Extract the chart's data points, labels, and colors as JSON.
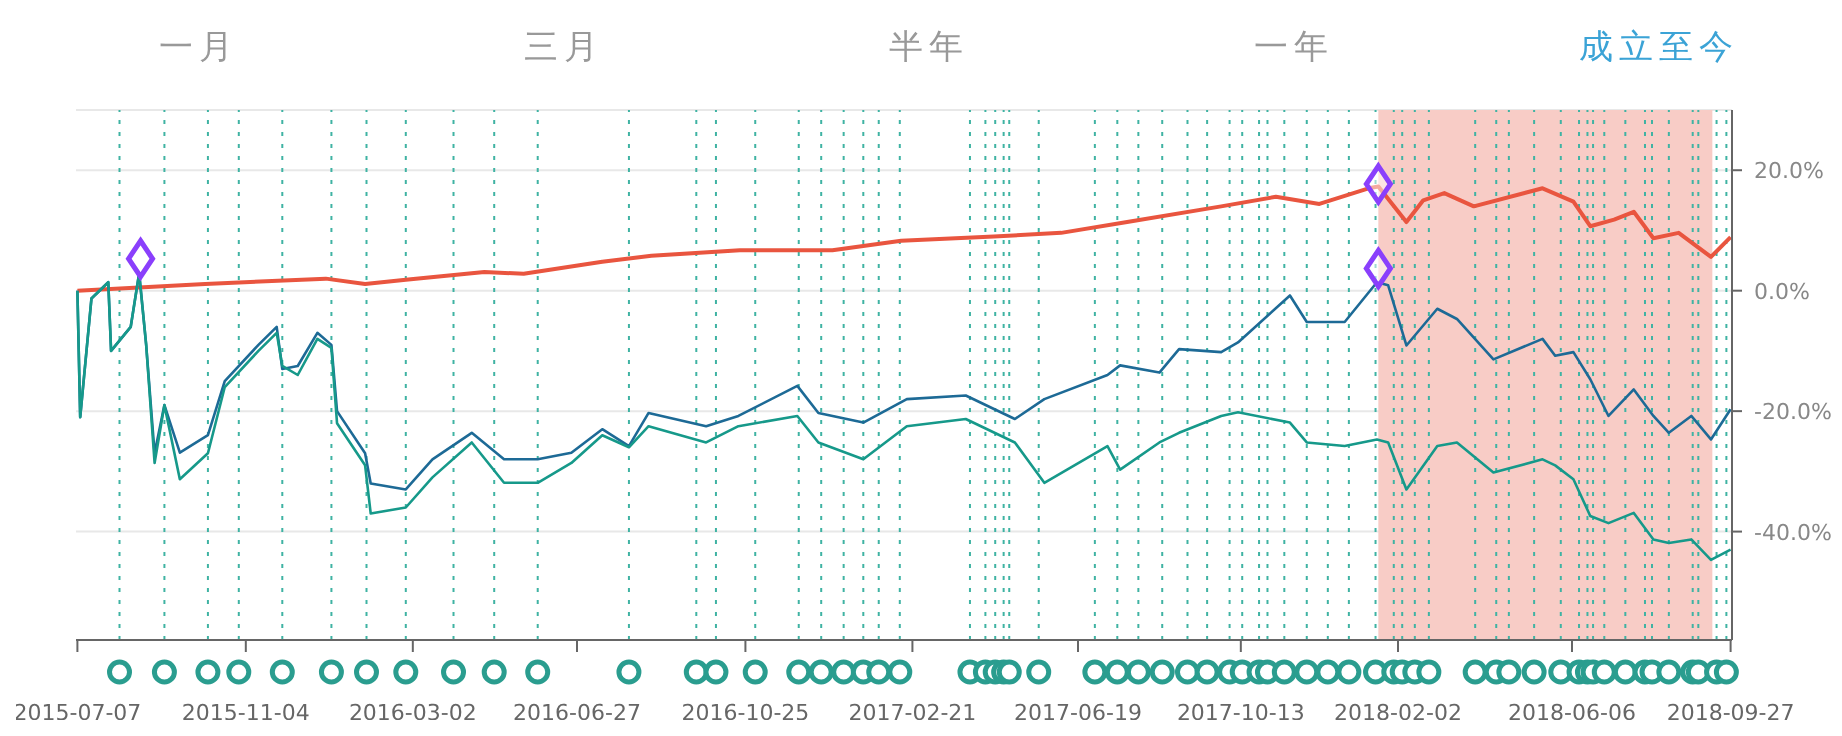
{
  "chart_data": {
    "type": "line",
    "annotations": [
      "一月",
      "三月",
      "半年",
      "一年",
      "成立至今"
    ],
    "x": [
      "2015-07-07",
      "2015-07-09",
      "2015-07-17",
      "2015-07-29",
      "2015-07-31",
      "2015-08-14",
      "2015-08-20",
      "2015-08-25",
      "2015-08-31",
      "2015-09-07",
      "2015-09-18",
      "2015-10-08",
      "2015-10-20",
      "2015-11-13",
      "2015-11-26",
      "2015-11-30",
      "2015-12-11",
      "2015-12-25",
      "2016-01-04",
      "2016-01-08",
      "2016-01-28",
      "2016-02-01",
      "2016-02-26",
      "2016-03-16",
      "2016-04-13",
      "2016-05-06",
      "2016-05-30",
      "2016-06-23",
      "2016-07-15",
      "2016-08-03",
      "2016-08-17",
      "2016-09-27",
      "2016-10-20",
      "2016-12-01",
      "2016-12-16",
      "2017-01-17",
      "2017-02-17",
      "2017-03-31",
      "2017-05-05",
      "2017-05-26",
      "2017-07-10",
      "2017-07-19",
      "2017-08-16",
      "2017-08-30",
      "2017-09-29",
      "2017-10-11",
      "2017-11-17",
      "2017-11-29",
      "2017-12-26",
      "2018-01-18",
      "2018-01-26",
      "2018-02-08",
      "2018-03-02",
      "2018-03-16",
      "2018-04-11",
      "2018-05-16",
      "2018-05-25",
      "2018-06-07",
      "2018-06-19",
      "2018-07-02",
      "2018-07-20",
      "2018-08-03",
      "2018-08-14",
      "2018-08-30",
      "2018-09-13",
      "2018-09-27"
    ],
    "series": [
      {
        "color": "#e9553f",
        "x": [
          "2015-07-07",
          "2015-10-06",
          "2015-12-31",
          "2016-01-28",
          "2016-02-26",
          "2016-04-22",
          "2016-05-20",
          "2016-07-15",
          "2016-08-19",
          "2016-10-21",
          "2016-12-26",
          "2017-02-13",
          "2017-04-20",
          "2017-06-07",
          "2017-07-24",
          "2017-09-29",
          "2017-11-07",
          "2017-12-08",
          "2018-01-12",
          "2018-01-19",
          "2018-02-08",
          "2018-02-20",
          "2018-03-07",
          "2018-03-28",
          "2018-05-16",
          "2018-06-07",
          "2018-06-19",
          "2018-07-06",
          "2018-07-20",
          "2018-08-03",
          "2018-08-21",
          "2018-09-13",
          "2018-09-27"
        ],
        "values": [
          0,
          1.1,
          2,
          1.1,
          1.8,
          3.1,
          2.8,
          4.8,
          5.8,
          6.7,
          6.7,
          8.3,
          9,
          9.6,
          11.4,
          14,
          15.6,
          14.4,
          17,
          17.3,
          11.4,
          15,
          16.2,
          14,
          17,
          14.8,
          10.7,
          11.8,
          13.1,
          8.7,
          9.6,
          5.6,
          8.9
        ]
      },
      {
        "color": "#1d6a96",
        "values": [
          0,
          -21,
          -1.3,
          1.4,
          -10,
          -6,
          2.9,
          -9,
          -27,
          -19,
          -26.9,
          -24,
          -15,
          -9,
          -6,
          -13,
          -12.5,
          -7,
          -9,
          -20,
          -27,
          -32,
          -33,
          -28,
          -23.6,
          -28,
          -28,
          -26.9,
          -23,
          -25.8,
          -20.3,
          -22.5,
          -20.8,
          -15.8,
          -20.3,
          -21.9,
          -18,
          -17.4,
          -21.3,
          -18,
          -14,
          -12.4,
          -13.6,
          -9.7,
          -10.2,
          -8.6,
          -0.8,
          -5.2,
          -5.2,
          1.4,
          0.9,
          -9.1,
          -3,
          -4.7,
          -11.4,
          -8,
          -10.8,
          -10.2,
          -14.7,
          -20.8,
          -16.4,
          -20.8,
          -23.6,
          -20.8,
          -24.7,
          -19.7
        ]
      },
      {
        "color": "#16998a",
        "values": [
          0,
          -21,
          -1.3,
          1.4,
          -10,
          -6,
          2.9,
          -9,
          -28.6,
          -19,
          -31.3,
          -27,
          -16,
          -10,
          -7,
          -12.5,
          -14,
          -8,
          -9.5,
          -22,
          -29,
          -37,
          -36,
          -31,
          -25.2,
          -31.9,
          -31.9,
          -28.6,
          -24,
          -26,
          -22.5,
          -25.2,
          -22.5,
          -20.8,
          -25.2,
          -28,
          -22.5,
          -21.3,
          -25.2,
          -31.9,
          -25.8,
          -29.7,
          -25.2,
          -23.6,
          -20.8,
          -20.2,
          -21.9,
          -25.2,
          -25.8,
          -24.7,
          -25.2,
          -33,
          -25.8,
          -25.2,
          -30.2,
          -28,
          -29,
          -31.3,
          -37.4,
          -38.6,
          -36.9,
          -41.3,
          -41.9,
          -41.3,
          -44.7,
          -43
        ]
      },
      {
        "type": "scatter",
        "marker": "diamond",
        "color": "#8a3ffc",
        "x": [
          "2015-08-21",
          "2018-01-19",
          "2018-01-19"
        ],
        "values": [
          5.3,
          17.7,
          3.7
        ]
      }
    ],
    "xlim": [
      "2015-07-06",
      "2018-09-28"
    ],
    "xticks": [
      "2015-07-07",
      "2015-11-04",
      "2016-03-02",
      "2016-06-27",
      "2016-10-25",
      "2017-02-21",
      "2017-06-19",
      "2017-10-13",
      "2018-02-02",
      "2018-06-06",
      "2018-09-27"
    ],
    "ylim": [
      -58,
      30
    ],
    "yticks": [
      {
        "value": -40,
        "label": "-40.0%"
      },
      {
        "value": -20,
        "label": "-20.0%"
      },
      {
        "value": 0,
        "label": "0.0%"
      },
      {
        "value": 20,
        "label": "20.0%"
      }
    ],
    "grid": "y",
    "bands": [
      {
        "axis": "x",
        "from": "2018-01-19",
        "to": "2018-09-14",
        "color": "#f8ccc6"
      }
    ],
    "ref_lines": [
      {
        "axis": "x",
        "value": "2015-08-06",
        "color": "#3fb3a3",
        "line_style": "dotted"
      },
      {
        "axis": "x",
        "value": "2015-09-07",
        "color": "#3fb3a3",
        "line_style": "dotted"
      },
      {
        "axis": "x",
        "value": "2015-10-08",
        "color": "#3fb3a3",
        "line_style": "dotted"
      },
      {
        "axis": "x",
        "value": "2015-10-30",
        "color": "#3fb3a3",
        "line_style": "dotted"
      },
      {
        "axis": "x",
        "value": "2015-11-30",
        "color": "#3fb3a3",
        "line_style": "dotted"
      },
      {
        "axis": "x",
        "value": "2016-01-04",
        "color": "#3fb3a3",
        "line_style": "dotted"
      },
      {
        "axis": "x",
        "value": "2016-01-29",
        "color": "#3fb3a3",
        "line_style": "dotted"
      },
      {
        "axis": "x",
        "value": "2016-02-26",
        "color": "#3fb3a3",
        "line_style": "dotted"
      },
      {
        "axis": "x",
        "value": "2016-03-31",
        "color": "#3fb3a3",
        "line_style": "dotted"
      },
      {
        "axis": "x",
        "value": "2016-04-29",
        "color": "#3fb3a3",
        "line_style": "dotted"
      },
      {
        "axis": "x",
        "value": "2016-05-30",
        "color": "#3fb3a3",
        "line_style": "dotted"
      },
      {
        "axis": "x",
        "value": "2016-08-03",
        "color": "#3fb3a3",
        "line_style": "dotted"
      },
      {
        "axis": "x",
        "value": "2016-09-20",
        "color": "#3fb3a3",
        "line_style": "dotted"
      },
      {
        "axis": "x",
        "value": "2016-10-04",
        "color": "#3fb3a3",
        "line_style": "dotted"
      },
      {
        "axis": "x",
        "value": "2016-11-01",
        "color": "#3fb3a3",
        "line_style": "dotted"
      },
      {
        "axis": "x",
        "value": "2016-12-02",
        "color": "#3fb3a3",
        "line_style": "dotted"
      },
      {
        "axis": "x",
        "value": "2016-12-18",
        "color": "#3fb3a3",
        "line_style": "dotted"
      },
      {
        "axis": "x",
        "value": "2017-01-03",
        "color": "#3fb3a3",
        "line_style": "dotted"
      },
      {
        "axis": "x",
        "value": "2017-01-17",
        "color": "#3fb3a3",
        "line_style": "dotted"
      },
      {
        "axis": "x",
        "value": "2017-01-28",
        "color": "#3fb3a3",
        "line_style": "dotted"
      },
      {
        "axis": "x",
        "value": "2017-02-12",
        "color": "#3fb3a3",
        "line_style": "dotted"
      },
      {
        "axis": "x",
        "value": "2017-04-03",
        "color": "#3fb3a3",
        "line_style": "dotted"
      },
      {
        "axis": "x",
        "value": "2017-04-14",
        "color": "#3fb3a3",
        "line_style": "dotted"
      },
      {
        "axis": "x",
        "value": "2017-04-21",
        "color": "#3fb3a3",
        "line_style": "dotted"
      },
      {
        "axis": "x",
        "value": "2017-04-27",
        "color": "#3fb3a3",
        "line_style": "dotted"
      },
      {
        "axis": "x",
        "value": "2017-05-01",
        "color": "#3fb3a3",
        "line_style": "dotted"
      },
      {
        "axis": "x",
        "value": "2017-05-22",
        "color": "#3fb3a3",
        "line_style": "dotted"
      },
      {
        "axis": "x",
        "value": "2017-07-01",
        "color": "#3fb3a3",
        "line_style": "dotted"
      },
      {
        "axis": "x",
        "value": "2017-07-17",
        "color": "#3fb3a3",
        "line_style": "dotted"
      },
      {
        "axis": "x",
        "value": "2017-08-01",
        "color": "#3fb3a3",
        "line_style": "dotted"
      },
      {
        "axis": "x",
        "value": "2017-08-18",
        "color": "#3fb3a3",
        "line_style": "dotted"
      },
      {
        "axis": "x",
        "value": "2017-09-05",
        "color": "#3fb3a3",
        "line_style": "dotted"
      },
      {
        "axis": "x",
        "value": "2017-09-19",
        "color": "#3fb3a3",
        "line_style": "dotted"
      },
      {
        "axis": "x",
        "value": "2017-10-05",
        "color": "#3fb3a3",
        "line_style": "dotted"
      },
      {
        "axis": "x",
        "value": "2017-10-14",
        "color": "#3fb3a3",
        "line_style": "dotted"
      },
      {
        "axis": "x",
        "value": "2017-10-26",
        "color": "#3fb3a3",
        "line_style": "dotted"
      },
      {
        "axis": "x",
        "value": "2017-11-01",
        "color": "#3fb3a3",
        "line_style": "dotted"
      },
      {
        "axis": "x",
        "value": "2017-11-13",
        "color": "#3fb3a3",
        "line_style": "dotted"
      },
      {
        "axis": "x",
        "value": "2017-11-29",
        "color": "#3fb3a3",
        "line_style": "dotted"
      },
      {
        "axis": "x",
        "value": "2017-12-14",
        "color": "#3fb3a3",
        "line_style": "dotted"
      },
      {
        "axis": "x",
        "value": "2017-12-29",
        "color": "#3fb3a3",
        "line_style": "dotted"
      },
      {
        "axis": "x",
        "value": "2018-01-17",
        "color": "#3fb3a3",
        "line_style": "dotted"
      },
      {
        "axis": "x",
        "value": "2018-01-30",
        "color": "#3fb3a3",
        "line_style": "dotted"
      },
      {
        "axis": "x",
        "value": "2018-02-05",
        "color": "#3fb3a3",
        "line_style": "dotted"
      },
      {
        "axis": "x",
        "value": "2018-02-14",
        "color": "#3fb3a3",
        "line_style": "dotted"
      },
      {
        "axis": "x",
        "value": "2018-02-24",
        "color": "#3fb3a3",
        "line_style": "dotted"
      },
      {
        "axis": "x",
        "value": "2018-03-29",
        "color": "#3fb3a3",
        "line_style": "dotted"
      },
      {
        "axis": "x",
        "value": "2018-04-13",
        "color": "#3fb3a3",
        "line_style": "dotted"
      },
      {
        "axis": "x",
        "value": "2018-04-22",
        "color": "#3fb3a3",
        "line_style": "dotted"
      },
      {
        "axis": "x",
        "value": "2018-05-10",
        "color": "#3fb3a3",
        "line_style": "dotted"
      },
      {
        "axis": "x",
        "value": "2018-05-29",
        "color": "#3fb3a3",
        "line_style": "dotted"
      },
      {
        "axis": "x",
        "value": "2018-06-11",
        "color": "#3fb3a3",
        "line_style": "dotted"
      },
      {
        "axis": "x",
        "value": "2018-06-17",
        "color": "#3fb3a3",
        "line_style": "dotted"
      },
      {
        "axis": "x",
        "value": "2018-06-21",
        "color": "#3fb3a3",
        "line_style": "dotted"
      },
      {
        "axis": "x",
        "value": "2018-06-29",
        "color": "#3fb3a3",
        "line_style": "dotted"
      },
      {
        "axis": "x",
        "value": "2018-07-14",
        "color": "#3fb3a3",
        "line_style": "dotted"
      },
      {
        "axis": "x",
        "value": "2018-07-28",
        "color": "#3fb3a3",
        "line_style": "dotted"
      },
      {
        "axis": "x",
        "value": "2018-08-02",
        "color": "#3fb3a3",
        "line_style": "dotted"
      },
      {
        "axis": "x",
        "value": "2018-08-14",
        "color": "#3fb3a3",
        "line_style": "dotted"
      },
      {
        "axis": "x",
        "value": "2018-08-31",
        "color": "#3fb3a3",
        "line_style": "dotted"
      },
      {
        "axis": "x",
        "value": "2018-09-04",
        "color": "#3fb3a3",
        "line_style": "dotted"
      },
      {
        "axis": "x",
        "value": "2018-09-17",
        "color": "#3fb3a3",
        "line_style": "dotted"
      },
      {
        "axis": "x",
        "value": "2018-09-24",
        "color": "#3fb3a3",
        "line_style": "dotted"
      }
    ]
  }
}
